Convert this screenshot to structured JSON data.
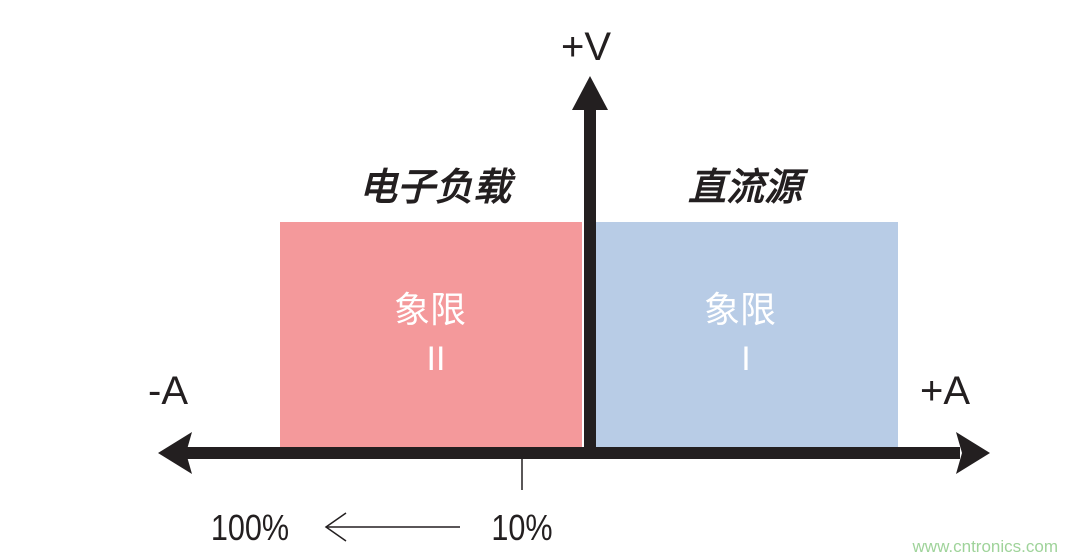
{
  "axes": {
    "v_pos": "+V",
    "a_neg": "-A",
    "a_pos": "+A"
  },
  "quadrants": [
    {
      "title": "电子负载",
      "label": "象限",
      "numeral": "II",
      "color": "#f4999b"
    },
    {
      "title": "直流源",
      "label": "象限",
      "numeral": "I",
      "color": "#b8cce6"
    }
  ],
  "scale": {
    "from": "100%",
    "to": "10%"
  },
  "watermark": "www.cntronics.com",
  "colors": {
    "axis": "#231f20",
    "watermark": "#9fd39a"
  }
}
